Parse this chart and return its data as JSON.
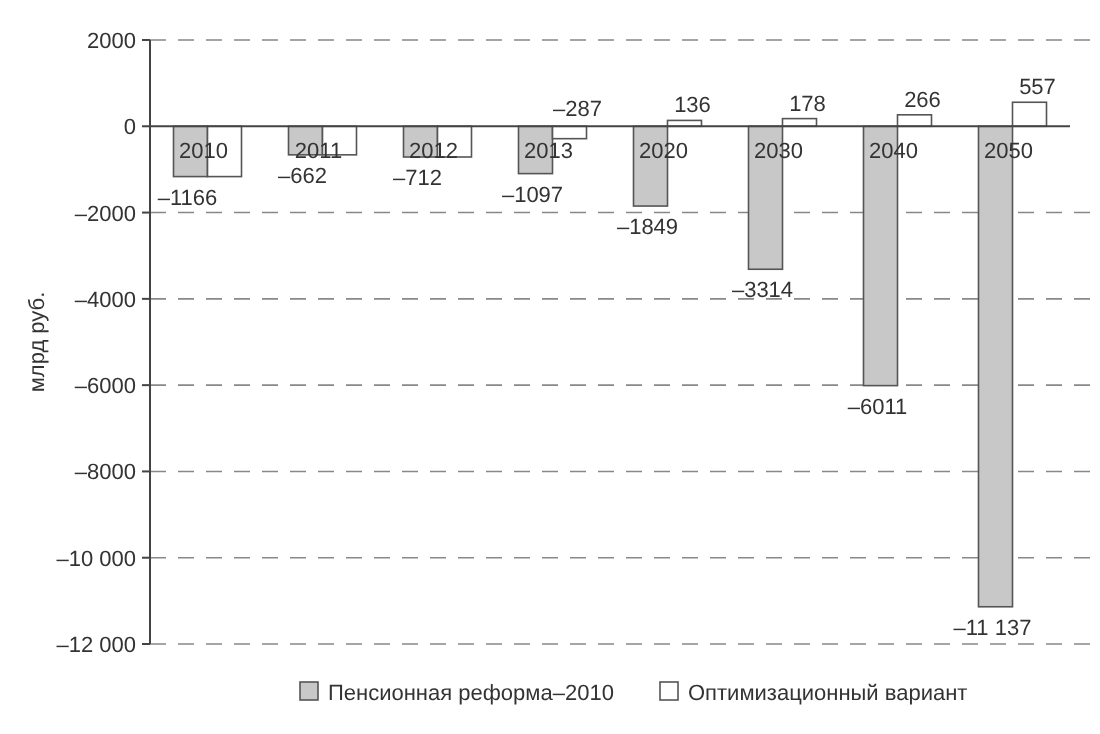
{
  "chart_data": {
    "type": "bar",
    "ylabel": "млрд руб.",
    "categories": [
      "2010",
      "2011",
      "2012",
      "2013",
      "2020",
      "2030",
      "2040",
      "2050"
    ],
    "series": [
      {
        "name": "Пенсионная реформа–2010",
        "color": "#c8c8c8",
        "values": [
          -1166,
          -662,
          -712,
          -1097,
          -1849,
          -3314,
          -6011,
          -11137
        ],
        "value_labels": [
          "–1166",
          "–662",
          "–712",
          "–1097",
          "–1849",
          "–3314",
          "–6011",
          "–11 137"
        ]
      },
      {
        "name": "Оптимизационный вариант",
        "color": "#ffffff",
        "values": [
          -1166,
          -662,
          -712,
          -287,
          136,
          178,
          266,
          557
        ],
        "value_labels": [
          null,
          null,
          null,
          "–287",
          "136",
          "178",
          "266",
          "557"
        ]
      }
    ],
    "ylim": [
      -12000,
      2000
    ],
    "yticks": [
      {
        "value": -12000,
        "label": "–12 000"
      },
      {
        "value": -10000,
        "label": "–10 000"
      },
      {
        "value": -8000,
        "label": "–8000"
      },
      {
        "value": -6000,
        "label": "–6000"
      },
      {
        "value": -4000,
        "label": "–4000"
      },
      {
        "value": -2000,
        "label": "–2000"
      },
      0,
      2000
    ],
    "grid": "y",
    "legend": "bottom"
  }
}
